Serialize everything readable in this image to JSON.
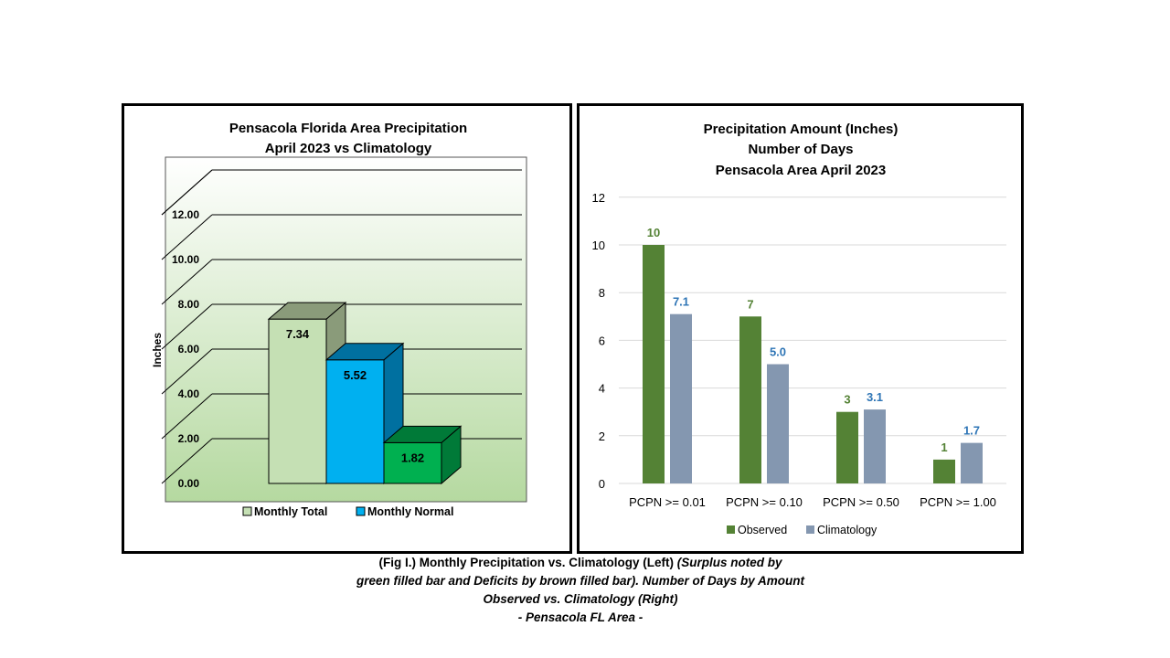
{
  "chart_data": [
    {
      "type": "bar",
      "title": [
        "Pensacola Florida Area Precipitation",
        "April 2023 vs Climatology"
      ],
      "ylabel": "Inches",
      "ylim": [
        0,
        12
      ],
      "ytick_labels": [
        "0.00",
        "2.00",
        "4.00",
        "6.00",
        "8.00",
        "10.00",
        "12.00"
      ],
      "yticks": [
        0,
        2,
        4,
        6,
        8,
        10,
        12
      ],
      "style": "3d-column",
      "bars": [
        {
          "name": "Monthly Total",
          "value": 7.34,
          "label": "7.34",
          "color": "#c5e0b4",
          "side": "#8a9b7a"
        },
        {
          "name": "Monthly Normal",
          "value": 5.52,
          "label": "5.52",
          "color": "#00b0f0",
          "side": "#0070a0"
        },
        {
          "name": "",
          "value": 1.82,
          "label": "1.82",
          "color": "#00b050",
          "side": "#007a38"
        }
      ],
      "legend": [
        {
          "label": "Monthly Total",
          "color": "#c5e0b4"
        },
        {
          "label": "Monthly Normal",
          "color": "#00b0f0"
        }
      ],
      "legend_position": "bottom",
      "grid": true
    },
    {
      "type": "bar",
      "title": [
        "Precipitation Amount (Inches)",
        "Number of Days",
        "Pensacola Area April 2023"
      ],
      "categories": [
        "PCPN >= 0.01",
        "PCPN >= 0.10",
        "PCPN >= 0.50",
        "PCPN >= 1.00"
      ],
      "ylim": [
        0,
        12
      ],
      "yticks": [
        0,
        2,
        4,
        6,
        8,
        10,
        12
      ],
      "series": [
        {
          "name": "Observed",
          "values": [
            10,
            7,
            3,
            1
          ],
          "labels": [
            "10",
            "7",
            "3",
            "1"
          ],
          "color": "#548235",
          "label_color": "#548235"
        },
        {
          "name": "Climatology",
          "values": [
            7.1,
            5.0,
            3.1,
            1.7
          ],
          "labels": [
            "7.1",
            "5.0",
            "3.1",
            "1.7"
          ],
          "color": "#8497b0",
          "label_color": "#2e75b6"
        }
      ],
      "legend_position": "bottom",
      "grid": true
    }
  ],
  "caption": {
    "line1_bold": "(Fig I.) Monthly Precipitation vs. Climatology (Left) ",
    "line1_italic": "(Surplus noted by",
    "line2": "green filled bar and Deficits by brown filled bar). Number of Days by Amount",
    "line3": "Observed vs. Climatology (Right)",
    "line4": "- Pensacola FL Area -"
  }
}
